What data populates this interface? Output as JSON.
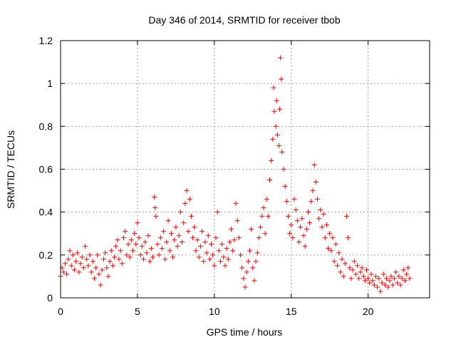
{
  "chart_data": {
    "type": "scatter",
    "title": "Day 346 of 2014, SRMTID for receiver tbob",
    "xlabel": "GPS time / hours",
    "ylabel": "SRMTID / TECUs",
    "xlim": [
      0,
      24
    ],
    "ylim": [
      0,
      1.2
    ],
    "xticks": [
      0,
      5,
      10,
      15,
      20
    ],
    "xtick_labels": [
      "0",
      "5",
      "10",
      "15",
      "20"
    ],
    "yticks": [
      0,
      0.2,
      0.4,
      0.6,
      0.8,
      1.0,
      1.2
    ],
    "ytick_labels": [
      "0",
      "0.2",
      "0.4",
      "0.6",
      "0.8",
      "1",
      "1.2"
    ],
    "grid": true,
    "marker": "+",
    "marker_color": "#ff0000",
    "series": [
      {
        "name": "SRMTID",
        "points": [
          [
            0.0,
            0.1
          ],
          [
            0.1,
            0.14
          ],
          [
            0.2,
            0.12
          ],
          [
            0.3,
            0.16
          ],
          [
            0.4,
            0.11
          ],
          [
            0.5,
            0.18
          ],
          [
            0.6,
            0.22
          ],
          [
            0.7,
            0.15
          ],
          [
            0.8,
            0.2
          ],
          [
            0.9,
            0.13
          ],
          [
            1.0,
            0.17
          ],
          [
            1.1,
            0.21
          ],
          [
            1.2,
            0.12
          ],
          [
            1.3,
            0.16
          ],
          [
            1.4,
            0.19
          ],
          [
            1.5,
            0.14
          ],
          [
            1.6,
            0.24
          ],
          [
            1.7,
            0.18
          ],
          [
            1.8,
            0.15
          ],
          [
            1.9,
            0.2
          ],
          [
            2.0,
            0.12
          ],
          [
            2.1,
            0.17
          ],
          [
            2.2,
            0.09
          ],
          [
            2.3,
            0.14
          ],
          [
            2.4,
            0.2
          ],
          [
            2.5,
            0.11
          ],
          [
            2.6,
            0.06
          ],
          [
            2.7,
            0.13
          ],
          [
            2.8,
            0.18
          ],
          [
            2.9,
            0.21
          ],
          [
            3.0,
            0.14
          ],
          [
            3.1,
            0.1
          ],
          [
            3.2,
            0.17
          ],
          [
            3.3,
            0.22
          ],
          [
            3.4,
            0.15
          ],
          [
            3.5,
            0.19
          ],
          [
            3.6,
            0.24
          ],
          [
            3.7,
            0.27
          ],
          [
            3.8,
            0.18
          ],
          [
            3.9,
            0.22
          ],
          [
            4.0,
            0.16
          ],
          [
            4.1,
            0.28
          ],
          [
            4.2,
            0.31
          ],
          [
            4.3,
            0.2
          ],
          [
            4.4,
            0.25
          ],
          [
            4.5,
            0.19
          ],
          [
            4.6,
            0.27
          ],
          [
            4.7,
            0.22
          ],
          [
            4.8,
            0.3
          ],
          [
            4.9,
            0.25
          ],
          [
            5.0,
            0.35
          ],
          [
            5.1,
            0.28
          ],
          [
            5.2,
            0.2
          ],
          [
            5.3,
            0.24
          ],
          [
            5.4,
            0.18
          ],
          [
            5.5,
            0.26
          ],
          [
            5.6,
            0.21
          ],
          [
            5.7,
            0.29
          ],
          [
            5.8,
            0.17
          ],
          [
            5.9,
            0.23
          ],
          [
            6.0,
            0.19
          ],
          [
            6.1,
            0.47
          ],
          [
            6.15,
            0.42
          ],
          [
            6.2,
            0.38
          ],
          [
            6.3,
            0.25
          ],
          [
            6.4,
            0.2
          ],
          [
            6.5,
            0.28
          ],
          [
            6.6,
            0.23
          ],
          [
            6.7,
            0.31
          ],
          [
            6.8,
            0.18
          ],
          [
            6.9,
            0.26
          ],
          [
            7.0,
            0.36
          ],
          [
            7.1,
            0.22
          ],
          [
            7.2,
            0.3
          ],
          [
            7.3,
            0.19
          ],
          [
            7.4,
            0.27
          ],
          [
            7.5,
            0.33
          ],
          [
            7.6,
            0.24
          ],
          [
            7.7,
            0.29
          ],
          [
            7.8,
            0.4
          ],
          [
            7.9,
            0.26
          ],
          [
            8.0,
            0.35
          ],
          [
            8.1,
            0.44
          ],
          [
            8.2,
            0.5
          ],
          [
            8.3,
            0.31
          ],
          [
            8.4,
            0.46
          ],
          [
            8.5,
            0.38
          ],
          [
            8.6,
            0.28
          ],
          [
            8.7,
            0.33
          ],
          [
            8.8,
            0.22
          ],
          [
            8.9,
            0.27
          ],
          [
            9.0,
            0.19
          ],
          [
            9.1,
            0.24
          ],
          [
            9.2,
            0.31
          ],
          [
            9.3,
            0.17
          ],
          [
            9.4,
            0.26
          ],
          [
            9.5,
            0.21
          ],
          [
            9.6,
            0.29
          ],
          [
            9.7,
            0.18
          ],
          [
            9.8,
            0.25
          ],
          [
            9.9,
            0.2
          ],
          [
            10.0,
            0.15
          ],
          [
            10.1,
            0.28
          ],
          [
            10.2,
            0.4
          ],
          [
            10.3,
            0.22
          ],
          [
            10.4,
            0.17
          ],
          [
            10.5,
            0.25
          ],
          [
            10.6,
            0.19
          ],
          [
            10.7,
            0.15
          ],
          [
            10.8,
            0.23
          ],
          [
            10.9,
            0.18
          ],
          [
            11.0,
            0.26
          ],
          [
            11.1,
            0.32
          ],
          [
            11.2,
            0.22
          ],
          [
            11.3,
            0.27
          ],
          [
            11.4,
            0.44
          ],
          [
            11.5,
            0.36
          ],
          [
            11.6,
            0.28
          ],
          [
            11.7,
            0.2
          ],
          [
            11.8,
            0.14
          ],
          [
            11.9,
            0.09
          ],
          [
            12.0,
            0.05
          ],
          [
            12.1,
            0.12
          ],
          [
            12.2,
            0.17
          ],
          [
            12.3,
            0.22
          ],
          [
            12.4,
            0.32
          ],
          [
            12.5,
            0.14
          ],
          [
            12.6,
            0.08
          ],
          [
            12.7,
            0.17
          ],
          [
            12.8,
            0.21
          ],
          [
            12.9,
            0.28
          ],
          [
            13.0,
            0.33
          ],
          [
            13.1,
            0.38
          ],
          [
            13.2,
            0.42
          ],
          [
            13.3,
            0.3
          ],
          [
            13.4,
            0.46
          ],
          [
            13.5,
            0.38
          ],
          [
            13.6,
            0.55
          ],
          [
            13.7,
            0.64
          ],
          [
            13.8,
            0.74
          ],
          [
            13.85,
            0.98
          ],
          [
            13.9,
            0.87
          ],
          [
            14.0,
            0.8
          ],
          [
            14.05,
            0.92
          ],
          [
            14.1,
            0.76
          ],
          [
            14.2,
            0.71
          ],
          [
            14.25,
            0.88
          ],
          [
            14.3,
            1.12
          ],
          [
            14.35,
            1.02
          ],
          [
            14.4,
            0.68
          ],
          [
            14.5,
            0.6
          ],
          [
            14.6,
            0.52
          ],
          [
            14.7,
            0.45
          ],
          [
            14.8,
            0.38
          ],
          [
            14.9,
            0.3
          ],
          [
            15.0,
            0.34
          ],
          [
            15.1,
            0.28
          ],
          [
            15.2,
            0.46
          ],
          [
            15.3,
            0.41
          ],
          [
            15.4,
            0.36
          ],
          [
            15.5,
            0.26
          ],
          [
            15.6,
            0.33
          ],
          [
            15.7,
            0.37
          ],
          [
            15.8,
            0.29
          ],
          [
            15.9,
            0.24
          ],
          [
            16.0,
            0.32
          ],
          [
            16.1,
            0.4
          ],
          [
            16.2,
            0.35
          ],
          [
            16.3,
            0.45
          ],
          [
            16.4,
            0.5
          ],
          [
            16.5,
            0.62
          ],
          [
            16.6,
            0.54
          ],
          [
            16.7,
            0.46
          ],
          [
            16.8,
            0.37
          ],
          [
            16.9,
            0.41
          ],
          [
            17.0,
            0.33
          ],
          [
            17.1,
            0.39
          ],
          [
            17.2,
            0.28
          ],
          [
            17.3,
            0.34
          ],
          [
            17.4,
            0.23
          ],
          [
            17.5,
            0.3
          ],
          [
            17.6,
            0.22
          ],
          [
            17.7,
            0.28
          ],
          [
            17.8,
            0.17
          ],
          [
            17.9,
            0.25
          ],
          [
            18.0,
            0.15
          ],
          [
            18.1,
            0.21
          ],
          [
            18.2,
            0.12
          ],
          [
            18.3,
            0.18
          ],
          [
            18.4,
            0.1
          ],
          [
            18.5,
            0.16
          ],
          [
            18.6,
            0.38
          ],
          [
            18.7,
            0.28
          ],
          [
            18.8,
            0.14
          ],
          [
            18.9,
            0.09
          ],
          [
            19.0,
            0.13
          ],
          [
            19.1,
            0.17
          ],
          [
            19.2,
            0.11
          ],
          [
            19.3,
            0.15
          ],
          [
            19.4,
            0.09
          ],
          [
            19.5,
            0.12
          ],
          [
            19.6,
            0.14
          ],
          [
            19.7,
            0.1
          ],
          [
            19.8,
            0.08
          ],
          [
            19.9,
            0.13
          ],
          [
            20.0,
            0.09
          ],
          [
            20.1,
            0.07
          ],
          [
            20.2,
            0.11
          ],
          [
            20.3,
            0.08
          ],
          [
            20.4,
            0.06
          ],
          [
            20.5,
            0.1
          ],
          [
            20.6,
            0.05
          ],
          [
            20.7,
            0.09
          ],
          [
            20.8,
            0.03
          ],
          [
            20.9,
            0.07
          ],
          [
            21.0,
            0.11
          ],
          [
            21.1,
            0.06
          ],
          [
            21.2,
            0.09
          ],
          [
            21.3,
            0.05
          ],
          [
            21.4,
            0.08
          ],
          [
            21.5,
            0.1
          ],
          [
            21.6,
            0.06
          ],
          [
            21.7,
            0.09
          ],
          [
            21.8,
            0.12
          ],
          [
            21.9,
            0.07
          ],
          [
            22.0,
            0.1
          ],
          [
            22.1,
            0.06
          ],
          [
            22.2,
            0.09
          ],
          [
            22.3,
            0.13
          ],
          [
            22.4,
            0.08
          ],
          [
            22.5,
            0.11
          ],
          [
            22.6,
            0.14
          ],
          [
            22.7,
            0.09
          ]
        ]
      }
    ]
  }
}
